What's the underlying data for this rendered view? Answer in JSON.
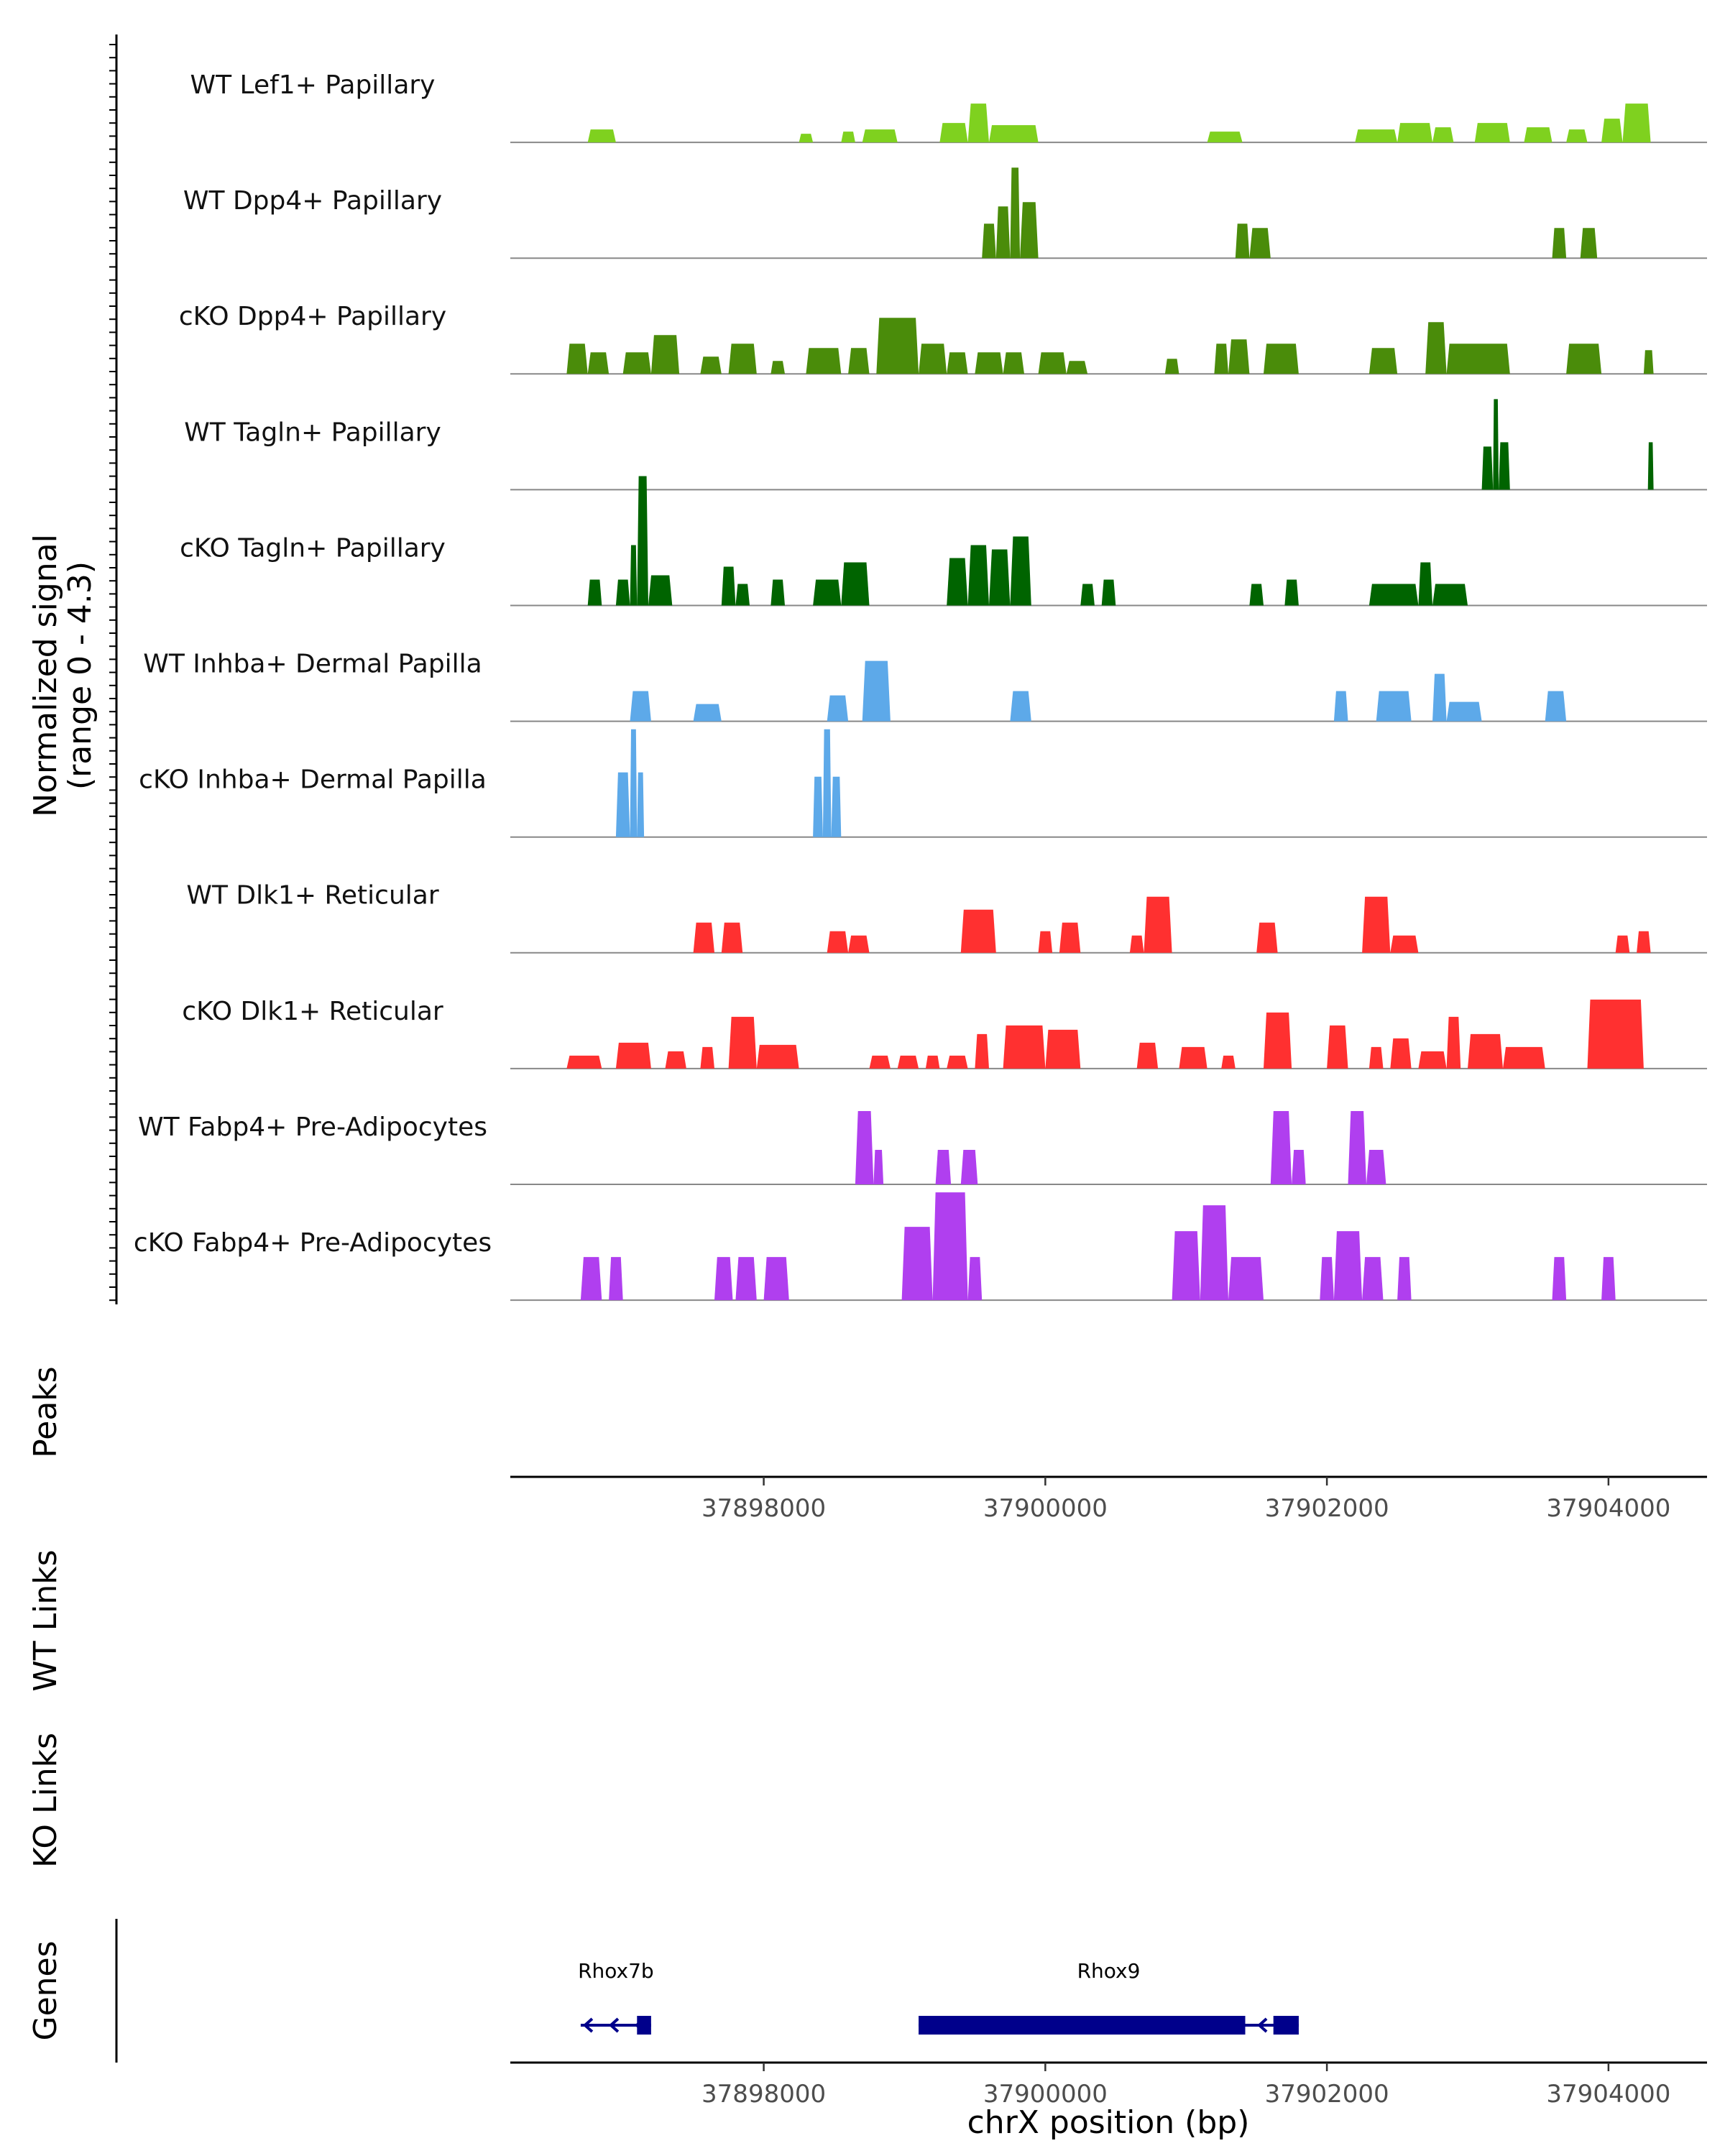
{
  "chart_data": {
    "type": "area",
    "title": "",
    "ylabel_lines": [
      "Normalized signal",
      "(range 0 - 4.3)"
    ],
    "xlabel": "chrX position (bp)",
    "xlim": [
      37896200,
      37904700
    ],
    "ylim": [
      0,
      4.3
    ],
    "x_ticks": [
      37898000,
      37900000,
      37902000,
      37904000
    ],
    "x_tick_labels": [
      "37898000",
      "37900000",
      "37902000",
      "37904000"
    ],
    "panel_labels": {
      "peaks": "Peaks",
      "wt_links": "WT Links",
      "ko_links": "KO Links",
      "genes": "Genes"
    },
    "tracks": [
      {
        "name": "WT Lef1+ Papillary",
        "color": "#7FD11F",
        "regions": [
          [
            37896750,
            37896950,
            0.3
          ],
          [
            37898250,
            37898350,
            0.2
          ],
          [
            37898550,
            37898650,
            0.25
          ],
          [
            37898700,
            37898950,
            0.3
          ],
          [
            37899250,
            37899450,
            0.45
          ],
          [
            37899450,
            37899600,
            0.9
          ],
          [
            37899600,
            37899950,
            0.4
          ],
          [
            37901150,
            37901400,
            0.25
          ],
          [
            37902200,
            37902500,
            0.3
          ],
          [
            37902500,
            37902750,
            0.45
          ],
          [
            37902750,
            37902900,
            0.35
          ],
          [
            37903050,
            37903300,
            0.45
          ],
          [
            37903400,
            37903600,
            0.35
          ],
          [
            37903700,
            37903850,
            0.3
          ],
          [
            37903950,
            37904100,
            0.55
          ],
          [
            37904100,
            37904300,
            0.9
          ]
        ]
      },
      {
        "name": "WT Dpp4+ Papillary",
        "color": "#4A8C0A",
        "regions": [
          [
            37899550,
            37899650,
            0.8
          ],
          [
            37899650,
            37899750,
            1.2
          ],
          [
            37899750,
            37899820,
            2.1
          ],
          [
            37899820,
            37899950,
            1.3
          ],
          [
            37901350,
            37901450,
            0.8
          ],
          [
            37901450,
            37901600,
            0.7
          ],
          [
            37903600,
            37903700,
            0.7
          ],
          [
            37903800,
            37903920,
            0.7
          ]
        ]
      },
      {
        "name": "cKO Dpp4+ Papillary",
        "color": "#4A8C0A",
        "regions": [
          [
            37896600,
            37896750,
            0.7
          ],
          [
            37896750,
            37896900,
            0.5
          ],
          [
            37897000,
            37897200,
            0.5
          ],
          [
            37897200,
            37897400,
            0.9
          ],
          [
            37897550,
            37897700,
            0.4
          ],
          [
            37897750,
            37897950,
            0.7
          ],
          [
            37898050,
            37898150,
            0.3
          ],
          [
            37898300,
            37898550,
            0.6
          ],
          [
            37898600,
            37898750,
            0.6
          ],
          [
            37898800,
            37899100,
            1.3
          ],
          [
            37899100,
            37899300,
            0.7
          ],
          [
            37899300,
            37899450,
            0.5
          ],
          [
            37899500,
            37899700,
            0.5
          ],
          [
            37899700,
            37899850,
            0.5
          ],
          [
            37899950,
            37900150,
            0.5
          ],
          [
            37900150,
            37900300,
            0.3
          ],
          [
            37900850,
            37900950,
            0.35
          ],
          [
            37901200,
            37901300,
            0.7
          ],
          [
            37901300,
            37901450,
            0.8
          ],
          [
            37901550,
            37901800,
            0.7
          ],
          [
            37902300,
            37902500,
            0.6
          ],
          [
            37902700,
            37902850,
            1.2
          ],
          [
            37902850,
            37903300,
            0.7
          ],
          [
            37903700,
            37903950,
            0.7
          ],
          [
            37904250,
            37904320,
            0.55
          ]
        ]
      },
      {
        "name": "WT Tagln+ Papillary",
        "color": "#006400",
        "regions": [
          [
            37903100,
            37903180,
            1.0
          ],
          [
            37903180,
            37903220,
            2.1
          ],
          [
            37903220,
            37903300,
            1.1
          ],
          [
            37904280,
            37904320,
            1.1
          ]
        ]
      },
      {
        "name": "cKO Tagln+ Papillary",
        "color": "#006400",
        "regions": [
          [
            37896750,
            37896850,
            0.6
          ],
          [
            37896950,
            37897050,
            0.6
          ],
          [
            37897050,
            37897100,
            1.4
          ],
          [
            37897100,
            37897180,
            3.0
          ],
          [
            37897180,
            37897350,
            0.7
          ],
          [
            37897700,
            37897800,
            0.9
          ],
          [
            37897800,
            37897900,
            0.5
          ],
          [
            37898050,
            37898150,
            0.6
          ],
          [
            37898350,
            37898550,
            0.6
          ],
          [
            37898550,
            37898750,
            1.0
          ],
          [
            37899300,
            37899450,
            1.1
          ],
          [
            37899450,
            37899600,
            1.4
          ],
          [
            37899600,
            37899750,
            1.3
          ],
          [
            37899750,
            37899900,
            1.6
          ],
          [
            37900250,
            37900350,
            0.5
          ],
          [
            37900400,
            37900500,
            0.6
          ],
          [
            37901450,
            37901550,
            0.5
          ],
          [
            37901700,
            37901800,
            0.6
          ],
          [
            37902300,
            37902650,
            0.5
          ],
          [
            37902650,
            37902750,
            1.0
          ],
          [
            37902750,
            37903000,
            0.5
          ]
        ]
      },
      {
        "name": "WT Inhba+ Dermal Papilla",
        "color": "#5DA9E9",
        "regions": [
          [
            37897050,
            37897200,
            0.7
          ],
          [
            37897500,
            37897700,
            0.4
          ],
          [
            37898450,
            37898600,
            0.6
          ],
          [
            37898700,
            37898900,
            1.4
          ],
          [
            37899750,
            37899900,
            0.7
          ],
          [
            37902050,
            37902150,
            0.7
          ],
          [
            37902350,
            37902600,
            0.7
          ],
          [
            37902750,
            37902850,
            1.1
          ],
          [
            37902850,
            37903100,
            0.45
          ],
          [
            37903550,
            37903700,
            0.7
          ]
        ]
      },
      {
        "name": "cKO Inhba+ Dermal Papilla",
        "color": "#5DA9E9",
        "regions": [
          [
            37896950,
            37897050,
            1.5
          ],
          [
            37897050,
            37897100,
            2.5
          ],
          [
            37897100,
            37897150,
            1.5
          ],
          [
            37898350,
            37898420,
            1.4
          ],
          [
            37898420,
            37898480,
            2.5
          ],
          [
            37898480,
            37898550,
            1.4
          ]
        ]
      },
      {
        "name": "WT Dlk1+ Reticular",
        "color": "#FF3030",
        "regions": [
          [
            37897500,
            37897650,
            0.7
          ],
          [
            37897700,
            37897850,
            0.7
          ],
          [
            37898450,
            37898600,
            0.5
          ],
          [
            37898600,
            37898750,
            0.4
          ],
          [
            37899400,
            37899650,
            1.0
          ],
          [
            37899950,
            37900050,
            0.5
          ],
          [
            37900100,
            37900250,
            0.7
          ],
          [
            37900600,
            37900700,
            0.4
          ],
          [
            37900700,
            37900900,
            1.3
          ],
          [
            37901500,
            37901650,
            0.7
          ],
          [
            37902250,
            37902450,
            1.3
          ],
          [
            37902450,
            37902650,
            0.4
          ],
          [
            37904050,
            37904150,
            0.4
          ],
          [
            37904200,
            37904300,
            0.5
          ]
        ]
      },
      {
        "name": "cKO Dlk1+ Reticular",
        "color": "#FF3030",
        "regions": [
          [
            37896600,
            37896850,
            0.3
          ],
          [
            37896950,
            37897200,
            0.6
          ],
          [
            37897300,
            37897450,
            0.4
          ],
          [
            37897550,
            37897650,
            0.5
          ],
          [
            37897750,
            37897950,
            1.2
          ],
          [
            37897950,
            37898250,
            0.55
          ],
          [
            37898750,
            37898900,
            0.3
          ],
          [
            37898950,
            37899100,
            0.3
          ],
          [
            37899150,
            37899250,
            0.3
          ],
          [
            37899300,
            37899450,
            0.3
          ],
          [
            37899500,
            37899600,
            0.8
          ],
          [
            37899700,
            37900000,
            1.0
          ],
          [
            37900000,
            37900250,
            0.9
          ],
          [
            37900650,
            37900800,
            0.6
          ],
          [
            37900950,
            37901150,
            0.5
          ],
          [
            37901250,
            37901350,
            0.3
          ],
          [
            37901550,
            37901750,
            1.3
          ],
          [
            37902000,
            37902150,
            1.0
          ],
          [
            37902300,
            37902400,
            0.5
          ],
          [
            37902450,
            37902600,
            0.7
          ],
          [
            37902650,
            37902850,
            0.4
          ],
          [
            37902850,
            37902950,
            1.2
          ],
          [
            37903000,
            37903250,
            0.8
          ],
          [
            37903250,
            37903550,
            0.5
          ],
          [
            37903850,
            37904250,
            1.6
          ]
        ]
      },
      {
        "name": "WT Fabp4+ Pre-Adipocytes",
        "color": "#B03FEF",
        "regions": [
          [
            37898650,
            37898780,
            1.7
          ],
          [
            37898780,
            37898850,
            0.8
          ],
          [
            37899220,
            37899330,
            0.8
          ],
          [
            37899400,
            37899520,
            0.8
          ],
          [
            37901600,
            37901750,
            1.7
          ],
          [
            37901750,
            37901850,
            0.8
          ],
          [
            37902150,
            37902280,
            1.7
          ],
          [
            37902280,
            37902420,
            0.8
          ]
        ]
      },
      {
        "name": "cKO Fabp4+ Pre-Adipocytes",
        "color": "#B03FEF",
        "regions": [
          [
            37896700,
            37896850,
            1.0
          ],
          [
            37896900,
            37897000,
            1.0
          ],
          [
            37897650,
            37897780,
            1.0
          ],
          [
            37897800,
            37897950,
            1.0
          ],
          [
            37898000,
            37898180,
            1.0
          ],
          [
            37898980,
            37899200,
            1.7
          ],
          [
            37899200,
            37899450,
            2.5
          ],
          [
            37899450,
            37899550,
            1.0
          ],
          [
            37900900,
            37901100,
            1.6
          ],
          [
            37901100,
            37901300,
            2.2
          ],
          [
            37901300,
            37901550,
            1.0
          ],
          [
            37901950,
            37902050,
            1.0
          ],
          [
            37902050,
            37902250,
            1.6
          ],
          [
            37902250,
            37902400,
            1.0
          ],
          [
            37902500,
            37902600,
            1.0
          ],
          [
            37903600,
            37903700,
            1.0
          ],
          [
            37903950,
            37904050,
            1.0
          ]
        ]
      }
    ],
    "genes": [
      {
        "name": "Rhox7b",
        "start": 37896700,
        "end": 37897200,
        "strand": "-",
        "exons": [
          [
            37897100,
            37897200
          ]
        ]
      },
      {
        "name": "Rhox9",
        "start": 37899100,
        "end": 37901800,
        "strand": "-",
        "exons": [
          [
            37899100,
            37901420
          ],
          [
            37901620,
            37901800
          ]
        ]
      }
    ],
    "gene_color": "#00008B"
  }
}
